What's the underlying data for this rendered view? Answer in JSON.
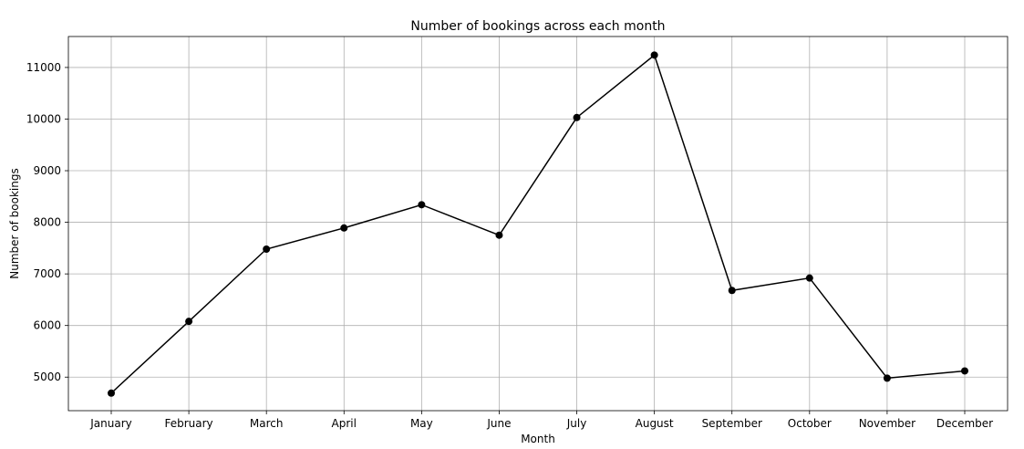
{
  "chart_data": {
    "type": "line",
    "title": "Number of bookings across each month",
    "xlabel": "Month",
    "ylabel": "Number of bookings",
    "categories": [
      "January",
      "February",
      "March",
      "April",
      "May",
      "June",
      "July",
      "August",
      "September",
      "October",
      "November",
      "December"
    ],
    "series": [
      {
        "values": [
          4690,
          6080,
          7480,
          7890,
          8340,
          7750,
          10030,
          11240,
          6680,
          6920,
          4980,
          5120
        ]
      }
    ],
    "ylim": [
      4350,
      11600
    ],
    "yticks": [
      5000,
      6000,
      7000,
      8000,
      9000,
      10000,
      11000
    ],
    "grid": true,
    "line_color": "#000000",
    "marker_color": "#000000"
  }
}
